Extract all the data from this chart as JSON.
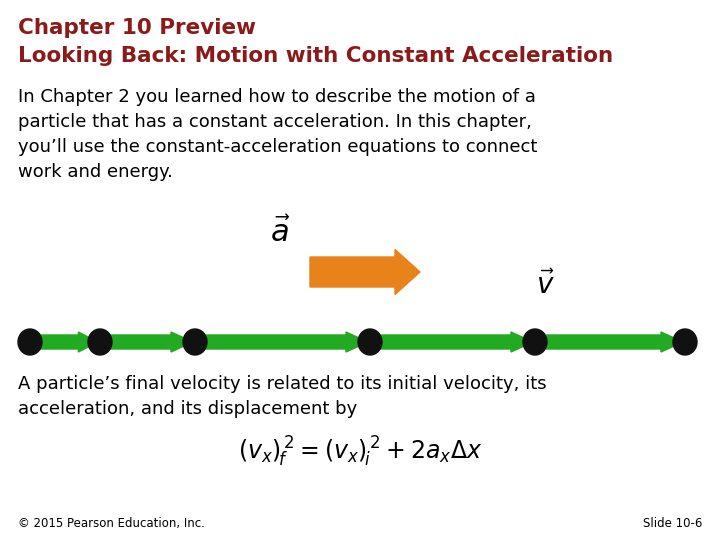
{
  "title_line1": "Chapter 10 Preview",
  "title_line2": "Looking Back: Motion with Constant Acceleration",
  "title_color": "#8B1A1A",
  "body_text": "In Chapter 2 you learned how to describe the motion of a\nparticle that has a constant acceleration. In this chapter,\nyou’ll use the constant-acceleration equations to connect\nwork and energy.",
  "body_text2": "A particle’s final velocity is related to its initial velocity, its\nacceleration, and its displacement by",
  "footer_left": "© 2015 Pearson Education, Inc.",
  "footer_right": "Slide 10-6",
  "arrow_color_orange": "#E8821A",
  "arrow_color_green": "#22AA22",
  "dot_color": "#111111",
  "bg_color": "#FFFFFF",
  "text_color": "#000000",
  "title_fontsize": 15.5,
  "body_fontsize": 13.0,
  "footer_fontsize": 8.5
}
